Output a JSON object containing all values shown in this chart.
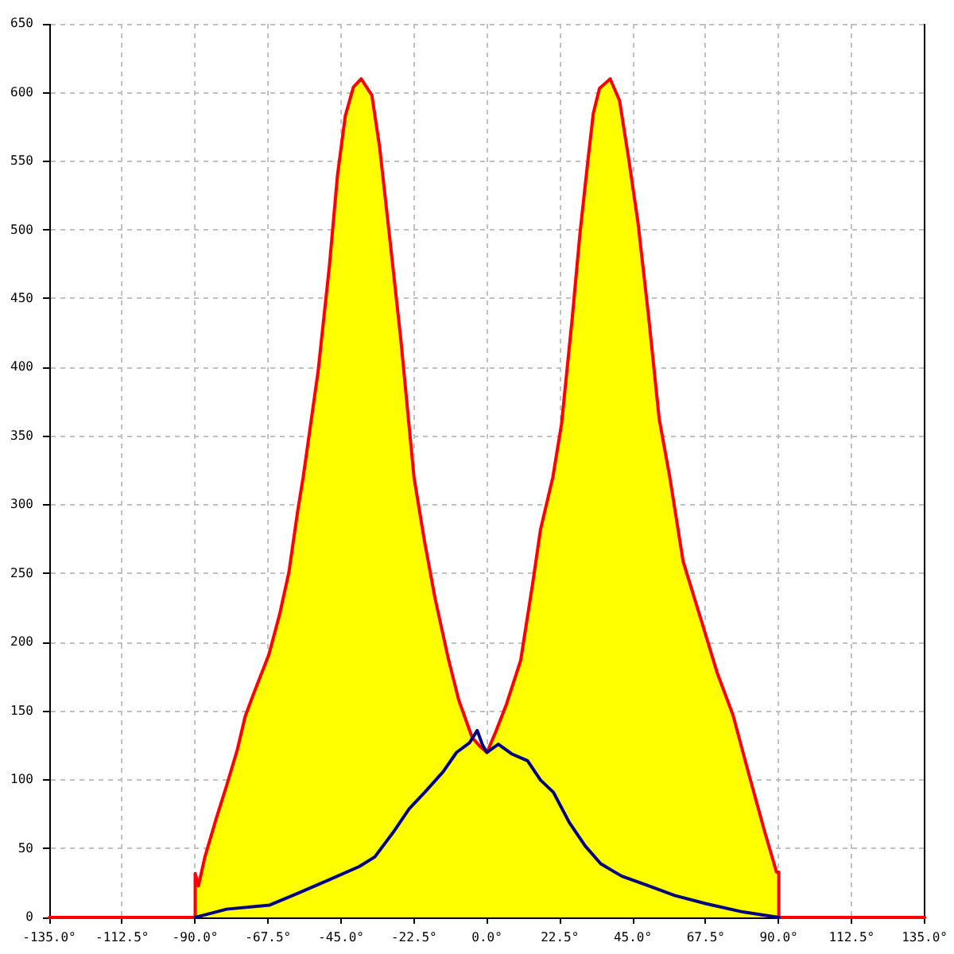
{
  "chart_data": {
    "type": "line",
    "xlim": [
      -135,
      135
    ],
    "xticks": [
      {
        "value": -135,
        "label": "-135.0°"
      },
      {
        "value": -112.5,
        "label": "-112.5°"
      },
      {
        "value": -90,
        "label": "-90.0°"
      },
      {
        "value": -67.5,
        "label": "-67.5°"
      },
      {
        "value": -45,
        "label": "-45.0°"
      },
      {
        "value": -22.5,
        "label": "-22.5°"
      },
      {
        "value": 0,
        "label": "0.0°"
      },
      {
        "value": 22.5,
        "label": "22.5°"
      },
      {
        "value": 45,
        "label": "45.0°"
      },
      {
        "value": 67.5,
        "label": "67.5°"
      },
      {
        "value": 90,
        "label": "90.0°"
      },
      {
        "value": 112.5,
        "label": "112.5°"
      },
      {
        "value": 135,
        "label": "135.0°"
      }
    ],
    "ylim": [
      0,
      650
    ],
    "yticks": [
      0,
      50,
      100,
      150,
      200,
      250,
      300,
      350,
      400,
      450,
      500,
      550,
      600,
      650
    ],
    "grid": true,
    "series": [
      {
        "type": "area",
        "color": "#ffff00",
        "x": [
          -90,
          -89,
          -87,
          -83.5,
          -80.3,
          -77,
          -74.6,
          -72.1,
          -67.3,
          -64,
          -61.1,
          -58.3,
          -56.7,
          -52.1,
          -48.6,
          -46.1,
          -43.7,
          -41.2,
          -38.8,
          -35.5,
          -33.1,
          -29.8,
          -26.6,
          -22.5,
          -19.3,
          -16,
          -12,
          -8.7,
          -4.6,
          -2,
          0,
          2.7,
          6,
          10.4,
          14.1,
          16.5,
          20.3,
          23,
          26.3,
          28.7,
          31.2,
          32.8,
          34.7,
          38,
          40.9,
          43.7,
          46.6,
          49.9,
          53.1,
          56.4,
          60.5,
          66.1,
          71,
          75.9,
          80.8,
          85.7,
          89.3,
          90
        ],
        "values": [
          32,
          23,
          44,
          72,
          96,
          122,
          146,
          162,
          191,
          220,
          251,
          297,
          320,
          397,
          474,
          540,
          583,
          604,
          610,
          598,
          560,
          490,
          421,
          320,
          274,
          232,
          189,
          158,
          131,
          124,
          120,
          135,
          155,
          187,
          243,
          282,
          320,
          359,
          436,
          498,
          552,
          585,
          603,
          610,
          594,
          552,
          505,
          436,
          363,
          320,
          259,
          216,
          178,
          147,
          104,
          62,
          33,
          33
        ]
      },
      {
        "type": "line",
        "color": "#ff0000",
        "x": [
          -135,
          -90,
          -90,
          -89,
          -87,
          -83.5,
          -80.3,
          -77,
          -74.6,
          -72.1,
          -67.3,
          -64,
          -61.1,
          -58.3,
          -56.7,
          -52.1,
          -48.6,
          -46.1,
          -43.7,
          -41.2,
          -38.8,
          -35.5,
          -33.1,
          -29.8,
          -26.6,
          -22.5,
          -19.3,
          -16,
          -12,
          -8.7,
          -4.6,
          -2,
          0,
          2.7,
          6,
          10.4,
          14.1,
          16.5,
          20.3,
          23,
          26.3,
          28.7,
          31.2,
          32.8,
          34.7,
          38,
          40.9,
          43.7,
          46.6,
          49.9,
          53.1,
          56.4,
          60.5,
          66.1,
          71,
          75.9,
          80.8,
          85.7,
          89.3,
          90,
          90,
          135
        ],
        "values": [
          0,
          0,
          32,
          23,
          44,
          72,
          96,
          122,
          146,
          162,
          191,
          220,
          251,
          297,
          320,
          397,
          474,
          540,
          583,
          604,
          610,
          598,
          560,
          490,
          421,
          320,
          274,
          232,
          189,
          158,
          131,
          124,
          120,
          135,
          155,
          187,
          243,
          282,
          320,
          359,
          436,
          498,
          552,
          585,
          603,
          610,
          594,
          552,
          505,
          436,
          363,
          320,
          259,
          216,
          178,
          147,
          104,
          62,
          33,
          33,
          0,
          0
        ]
      },
      {
        "type": "line",
        "color": "#000080",
        "x": [
          -90,
          -80.3,
          -67,
          -58.9,
          -49.1,
          -39.4,
          -34.6,
          -28.9,
          -24,
          -19.2,
          -13.5,
          -9.4,
          -5.4,
          -3,
          -1.3,
          0,
          3.5,
          7.6,
          12.5,
          16.5,
          20.5,
          25.4,
          30.3,
          35.1,
          41.6,
          49.8,
          57.9,
          67.6,
          78.9,
          90
        ],
        "values": [
          0,
          6,
          9,
          17,
          27,
          37,
          44,
          62,
          79,
          91,
          106,
          120,
          127,
          136,
          125,
          120,
          126,
          119,
          114,
          100,
          91,
          69,
          52,
          39,
          30,
          23,
          16,
          10,
          4,
          0
        ]
      }
    ]
  }
}
